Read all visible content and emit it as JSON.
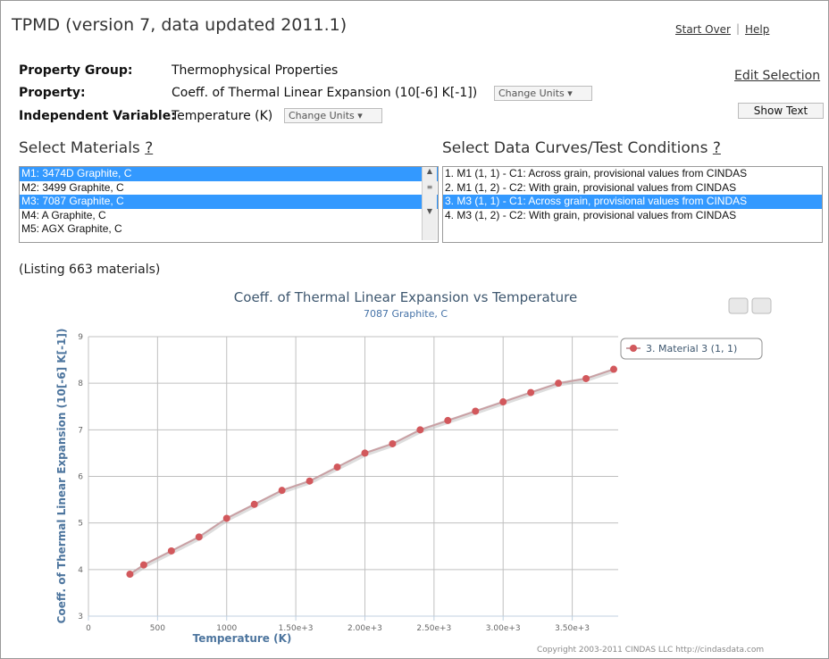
{
  "header": {
    "title": "TPMD (version 7, data updated 2011.1)",
    "links": [
      "Start Over",
      "Help"
    ]
  },
  "properties": [
    {
      "label": "Property Group:",
      "value": "Thermophysical Properties"
    },
    {
      "label": "Property:",
      "value": "Coeff. of Thermal Linear Expansion (10[-6] K[-1])",
      "button": "Change Units"
    },
    {
      "label": "Independent Variable:",
      "value": "Temperature (K)",
      "button": "Change Units"
    }
  ],
  "edit_selection": "Edit Selection",
  "show_text": "Show Text",
  "materials": {
    "heading": "Select Materials",
    "help": "?",
    "items": [
      {
        "label": "M1: 3474D Graphite, C",
        "selected": true
      },
      {
        "label": "M2: 3499 Graphite, C",
        "selected": false
      },
      {
        "label": "M3: 7087 Graphite, C",
        "selected": true
      },
      {
        "label": "M4: A Graphite, C",
        "selected": false
      },
      {
        "label": "M5: AGX Graphite, C",
        "selected": false
      }
    ]
  },
  "curves": {
    "heading": "Select Data Curves/Test Conditions",
    "help": "?",
    "items": [
      {
        "label": "1. M1 (1, 1) - C1: Across grain, provisional values from CINDAS",
        "selected": false
      },
      {
        "label": "2. M1 (1, 2) - C2: With grain, provisional values from CINDAS",
        "selected": false
      },
      {
        "label": "3. M3 (1, 1) - C1: Across grain, provisional values from CINDAS",
        "selected": true
      },
      {
        "label": "4. M3 (1, 2) - C2: With grain, provisional values from CINDAS",
        "selected": false
      }
    ]
  },
  "listing": "(Listing 663 materials)",
  "chart_data": {
    "type": "line",
    "title": "Coeff. of Thermal Linear Expansion vs Temperature",
    "subtitle": "7087 Graphite, C",
    "x_label": "Temperature (K)",
    "y_label": "Coeff. of Thermal Linear Expansion (10[-6] K[-1])",
    "x": [
      300,
      400,
      600,
      800,
      1000,
      1200,
      1400,
      1600,
      1800,
      2000,
      2200,
      2400,
      2600,
      2800,
      3000,
      3200,
      3400,
      3600,
      3800
    ],
    "series": [
      {
        "name": "3. Material 3 (1, 1)",
        "color": "#d2585c",
        "values": [
          3.9,
          4.1,
          4.4,
          4.7,
          5.1,
          5.4,
          5.7,
          5.9,
          6.2,
          6.5,
          6.7,
          7.0,
          7.2,
          7.4,
          7.6,
          7.8,
          8.0,
          8.1,
          8.3
        ]
      }
    ],
    "xlim": [
      0,
      3800
    ],
    "ylim": [
      3,
      9
    ],
    "xticks": [
      0,
      500,
      1000,
      {
        "value": 1500,
        "label": "1.50e+3"
      },
      {
        "value": 2000,
        "label": "2.00e+3"
      },
      {
        "value": 2500,
        "label": "2.50e+3"
      },
      {
        "value": 3000,
        "label": "3.00e+3"
      },
      {
        "value": 3500,
        "label": "3.50e+3"
      }
    ],
    "yticks": [
      3,
      4,
      5,
      6,
      7,
      8,
      9
    ],
    "grid": true,
    "legend": "top-right"
  },
  "copyright": "Copyright 2003-2011 CINDAS LLC http://cindasdata.com"
}
